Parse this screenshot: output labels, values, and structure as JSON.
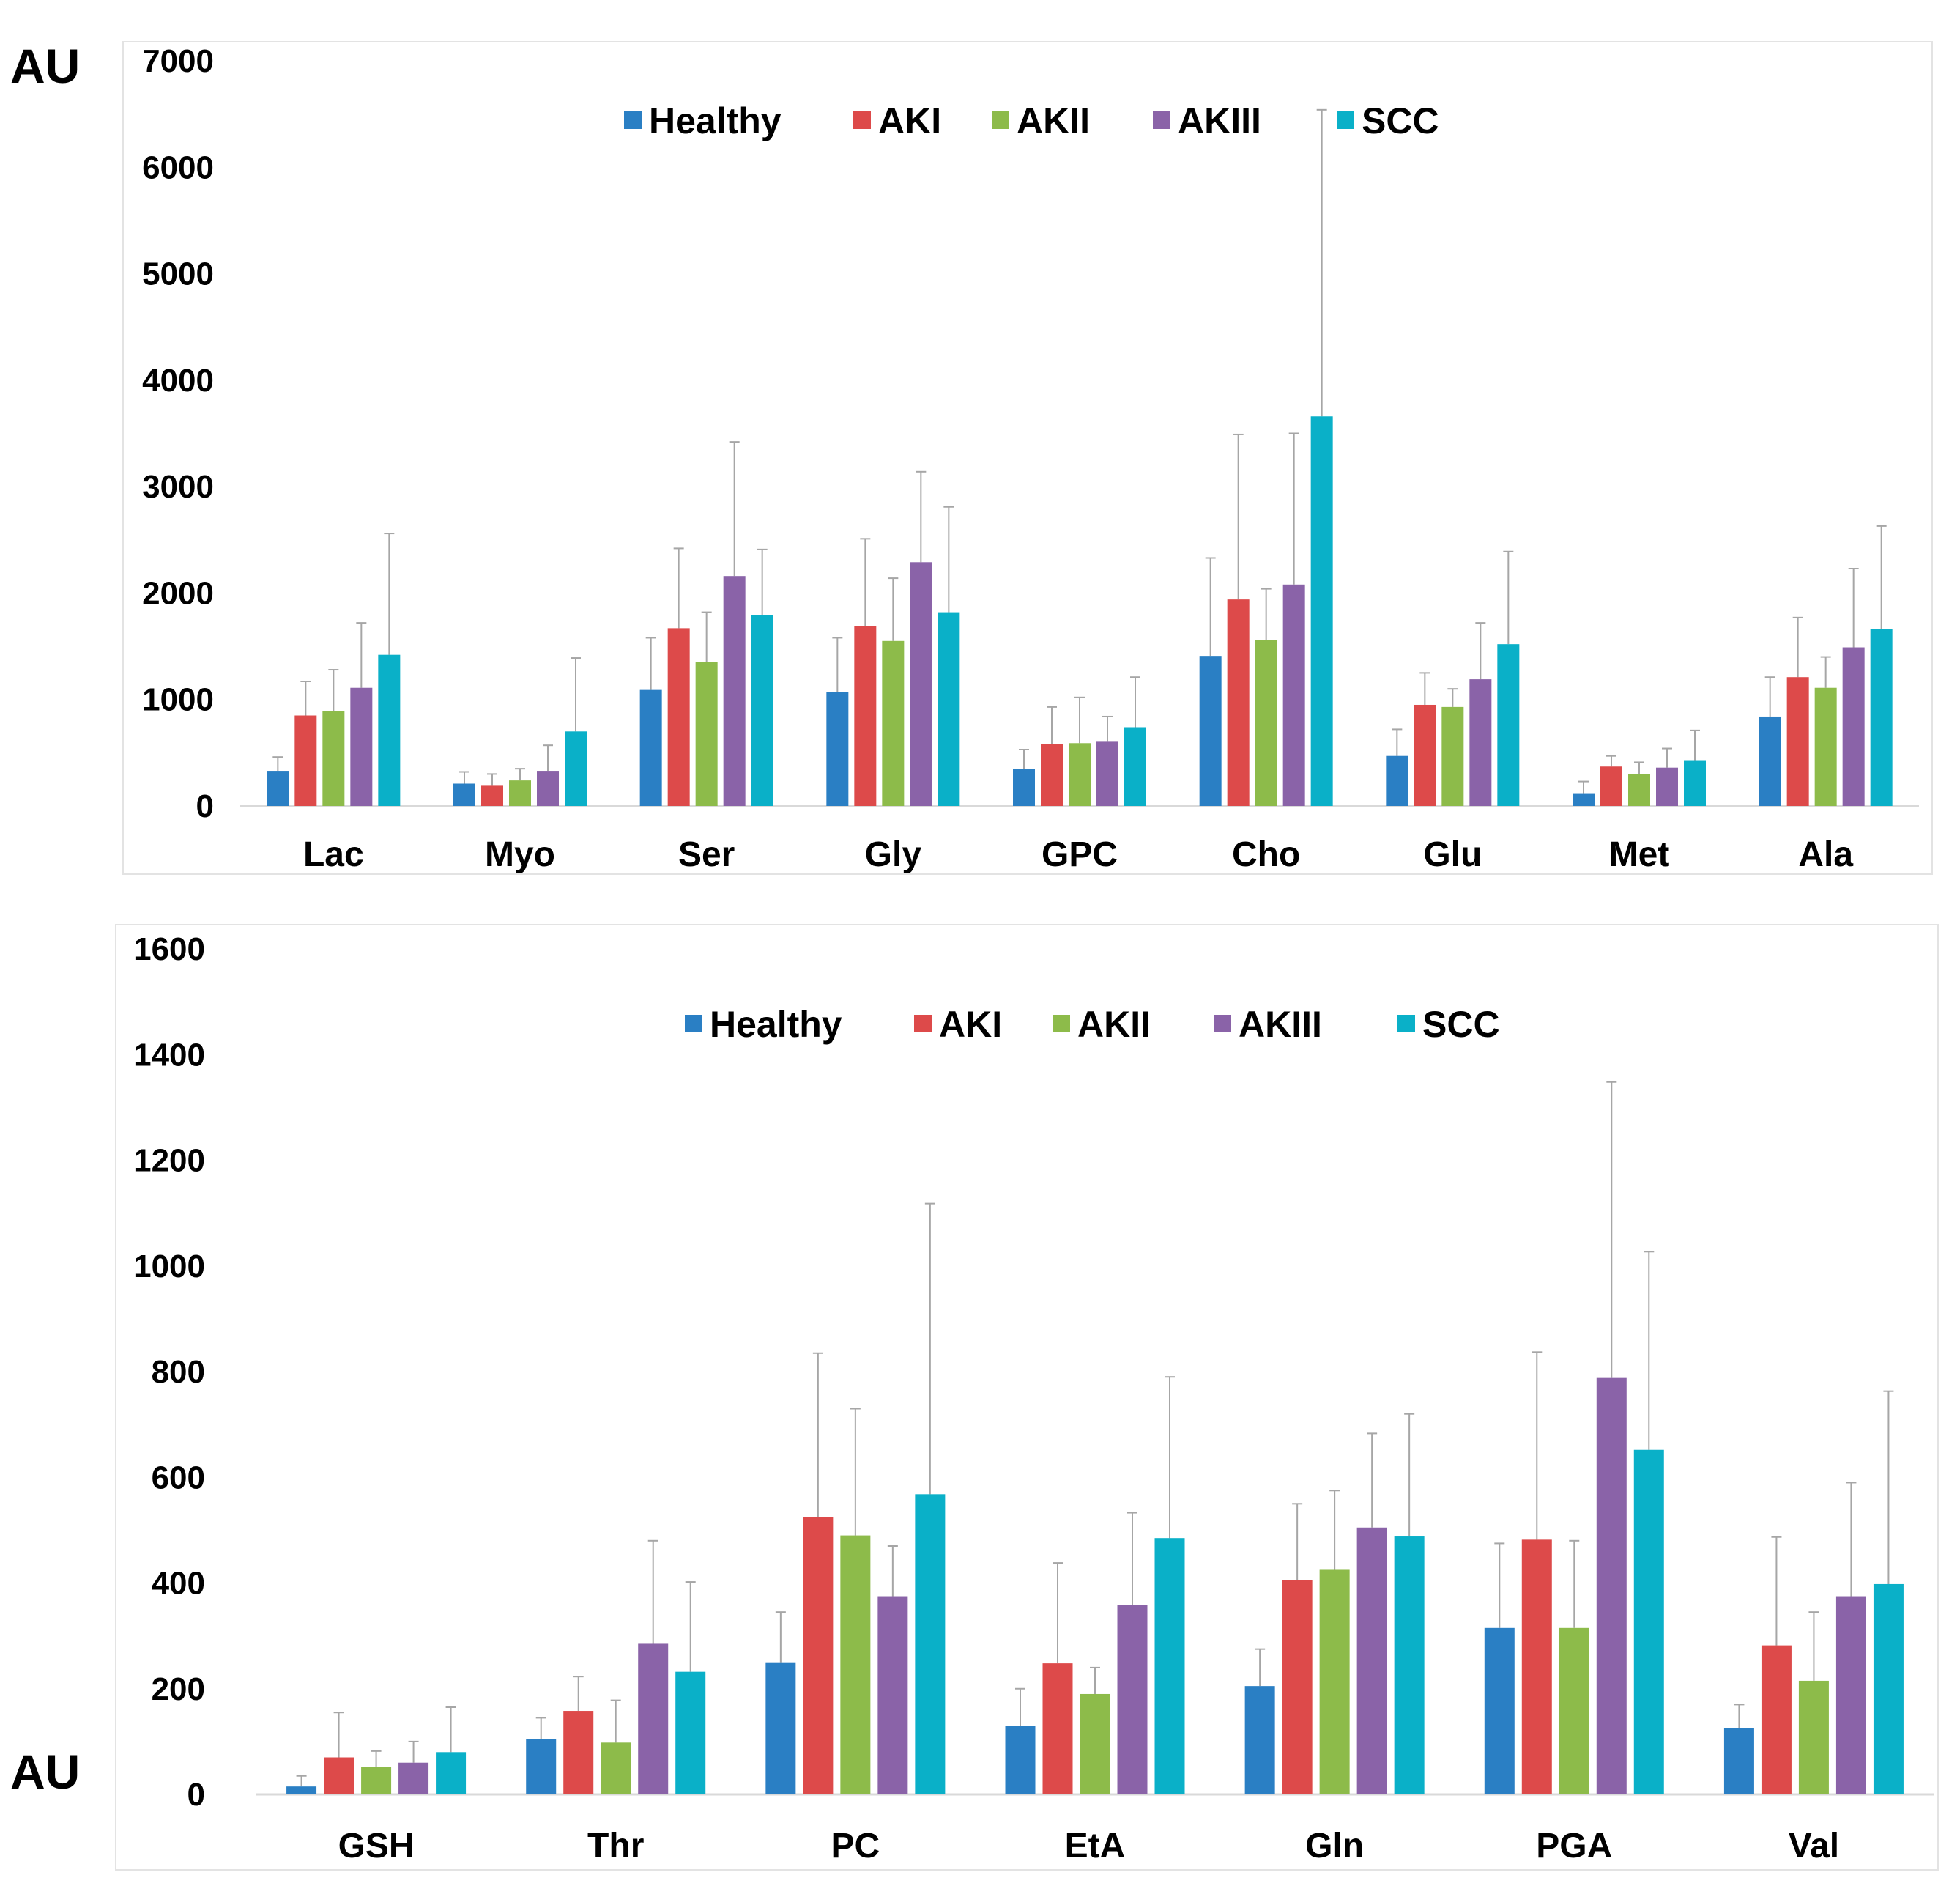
{
  "colors": {
    "Healthy": "#2a7fc4",
    "AKI": "#dd4a4a",
    "AKII": "#8dbb4a",
    "AKIII": "#8a63a8",
    "SCC": "#0ab0c8",
    "error_bar": "#a6a6a6",
    "frame": "#e3e3e3",
    "axis": "#d9d9d9"
  },
  "chart_data": [
    {
      "type": "bar",
      "ylabel": "AU",
      "ylim": [
        0,
        7000
      ],
      "yticks": [
        0,
        1000,
        2000,
        3000,
        4000,
        5000,
        6000,
        7000
      ],
      "grid": false,
      "legend": "top-center",
      "categories": [
        "Lac",
        "Myo",
        "Ser",
        "Gly",
        "GPC",
        "Cho",
        "Glu",
        "Met",
        "Ala"
      ],
      "series": [
        {
          "name": "Healthy",
          "values": [
            330,
            210,
            1090,
            1070,
            350,
            1410,
            470,
            120,
            840
          ],
          "errors": [
            130,
            110,
            490,
            510,
            180,
            920,
            250,
            110,
            370
          ]
        },
        {
          "name": "AKI",
          "values": [
            850,
            190,
            1670,
            1690,
            580,
            1940,
            950,
            370,
            1210
          ],
          "errors": [
            320,
            110,
            750,
            820,
            350,
            1550,
            300,
            100,
            560
          ]
        },
        {
          "name": "AKII",
          "values": [
            890,
            240,
            1350,
            1550,
            590,
            1560,
            930,
            300,
            1110
          ],
          "errors": [
            390,
            110,
            470,
            590,
            430,
            480,
            170,
            110,
            290
          ]
        },
        {
          "name": "AKIII",
          "values": [
            1110,
            330,
            2160,
            2290,
            610,
            2080,
            1190,
            360,
            1490
          ],
          "errors": [
            610,
            240,
            1260,
            850,
            230,
            1420,
            530,
            180,
            740
          ]
        },
        {
          "name": "SCC",
          "values": [
            1420,
            700,
            1790,
            1820,
            740,
            3660,
            1520,
            430,
            1660
          ],
          "errors": [
            1140,
            690,
            620,
            990,
            470,
            2880,
            870,
            280,
            970
          ]
        }
      ]
    },
    {
      "type": "bar",
      "ylabel": "AU",
      "ylim": [
        0,
        1600
      ],
      "yticks": [
        0,
        200,
        400,
        600,
        800,
        1000,
        1200,
        1400,
        1600
      ],
      "grid": false,
      "legend": "top-center",
      "categories": [
        "GSH",
        "Thr",
        "PC",
        "EtA",
        "Gln",
        "PGA",
        "Val"
      ],
      "series": [
        {
          "name": "Healthy",
          "values": [
            15,
            105,
            250,
            130,
            205,
            315,
            125
          ],
          "errors": [
            20,
            40,
            95,
            70,
            70,
            160,
            45
          ]
        },
        {
          "name": "AKI",
          "values": [
            70,
            158,
            525,
            248,
            405,
            482,
            282
          ],
          "errors": [
            85,
            65,
            310,
            190,
            145,
            355,
            205
          ]
        },
        {
          "name": "AKII",
          "values": [
            52,
            98,
            490,
            190,
            425,
            315,
            215
          ],
          "errors": [
            30,
            80,
            240,
            50,
            150,
            165,
            130
          ]
        },
        {
          "name": "AKIII",
          "values": [
            60,
            285,
            375,
            358,
            505,
            788,
            375
          ],
          "errors": [
            40,
            195,
            95,
            175,
            178,
            560,
            215
          ]
        },
        {
          "name": "SCC",
          "values": [
            80,
            232,
            568,
            485,
            488,
            652,
            398
          ],
          "errors": [
            85,
            170,
            550,
            305,
            232,
            375,
            365
          ]
        }
      ]
    }
  ]
}
